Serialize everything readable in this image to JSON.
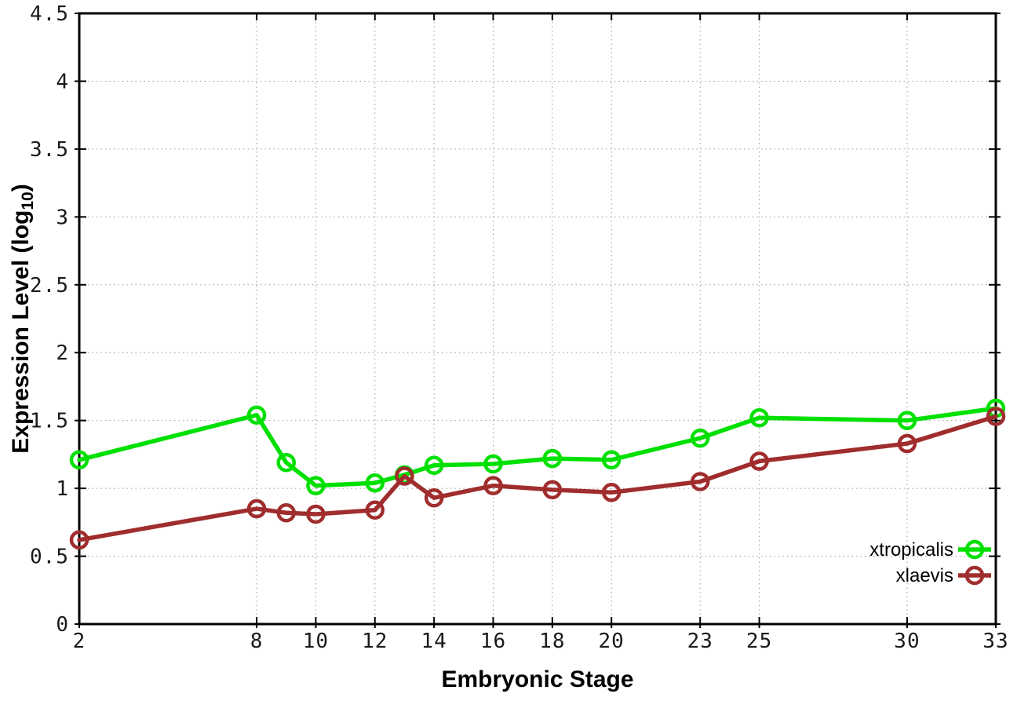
{
  "chart_data": {
    "type": "line",
    "title": "",
    "xlabel": "Embryonic Stage",
    "ylabel": "Expression Level (log10)",
    "ylabel_prefix": "Expression Level (log",
    "ylabel_sub": "10",
    "ylabel_suffix": ")",
    "xlim": [
      2,
      33
    ],
    "ylim": [
      0,
      4.5
    ],
    "x_ticks": [
      2,
      8,
      10,
      12,
      14,
      16,
      18,
      20,
      23,
      25,
      30,
      33
    ],
    "y_ticks": [
      0,
      0.5,
      1,
      1.5,
      2,
      2.5,
      3,
      3.5,
      4,
      4.5
    ],
    "grid": true,
    "legend_position": "bottom-right",
    "x": [
      2,
      8,
      9,
      10,
      12,
      13,
      14,
      16,
      18,
      20,
      23,
      25,
      30,
      33
    ],
    "series": [
      {
        "name": "xtropicalis",
        "color": "#00e000",
        "values": [
          1.21,
          1.54,
          1.19,
          1.02,
          1.04,
          1.1,
          1.17,
          1.18,
          1.22,
          1.21,
          1.37,
          1.52,
          1.5,
          1.59
        ]
      },
      {
        "name": "xlaevis",
        "color": "#a02d2d",
        "values": [
          0.62,
          0.85,
          0.82,
          0.81,
          0.84,
          1.09,
          0.93,
          1.02,
          0.99,
          0.97,
          1.05,
          1.2,
          1.33,
          1.53
        ]
      }
    ],
    "style": {
      "grid_color": "#999999",
      "axis_color": "#000000",
      "tick_label_color": "#1a1a1a"
    }
  }
}
